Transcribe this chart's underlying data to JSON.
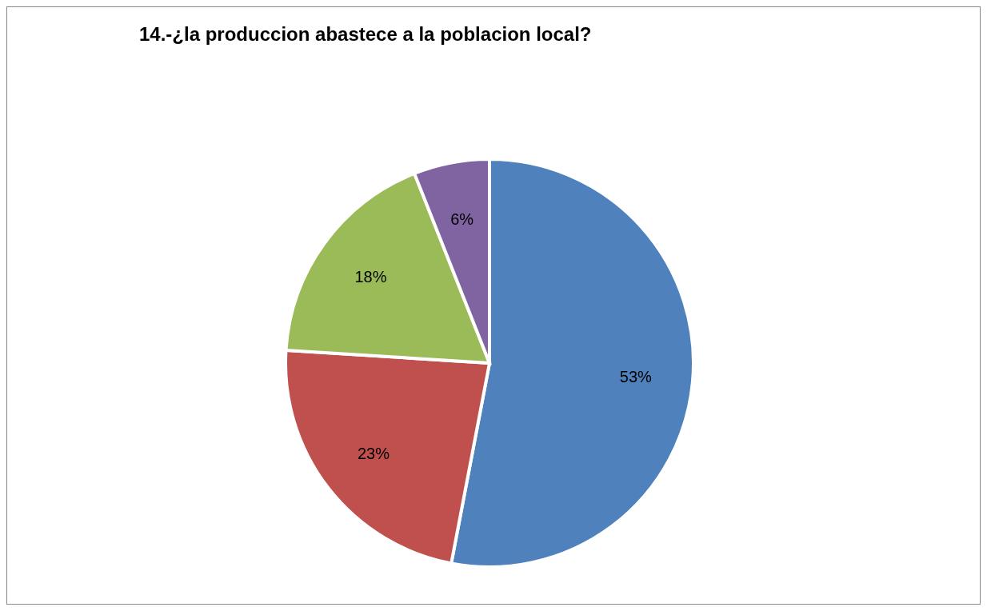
{
  "chart_data": {
    "type": "pie",
    "title": "14.-¿la produccion abastece a la poblacion local?",
    "categories": [
      null,
      null,
      null,
      null
    ],
    "values": [
      53,
      23,
      18,
      6
    ],
    "colors": [
      "#4f81bd",
      "#c0504d",
      "#9bbb59",
      "#8064a2"
    ],
    "value_labels": [
      "53%",
      "23%",
      "18%",
      "6%"
    ],
    "legend": false
  }
}
